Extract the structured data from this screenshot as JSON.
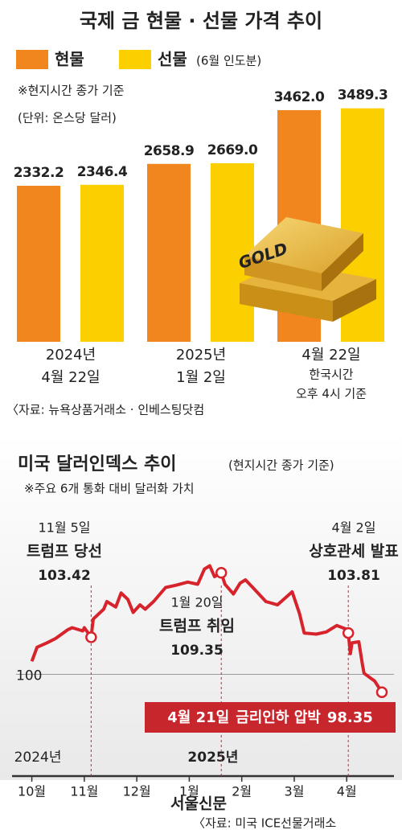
{
  "chart_data": [
    {
      "type": "bar",
      "title": "국제 금 현물 · 선물 가격 추이",
      "notes": [
        "※현지시간 종가 기준",
        "(단위: 온스당 달러)"
      ],
      "categories": [
        [
          "2024년",
          "4월 22일"
        ],
        [
          "2025년",
          "1월 2일"
        ],
        [
          "4월 22일",
          "한국시간",
          "오후 4시 기준"
        ]
      ],
      "series": [
        {
          "name": "현물",
          "color": "#f0861d",
          "values": [
            2332.2,
            2658.9,
            3462.0
          ],
          "value_labels": [
            "2332.2",
            "2658.9",
            "3462.0"
          ]
        },
        {
          "name": "선물",
          "name_note": "(6월 인도분)",
          "color": "#fccf00",
          "values": [
            2346.4,
            2669.0,
            3489.3
          ],
          "value_labels": [
            "2346.4",
            "2669.0",
            "3489.3"
          ]
        }
      ],
      "ylim": [
        0,
        5000
      ],
      "image_text": "GOLD",
      "source": "〈자료: 뉴욕상품거래소 · 인베스팅닷컴"
    },
    {
      "type": "line",
      "title": "미국 달러인덱스 추이",
      "subtitle": "(현지시간 종가 기준)",
      "note": "※주요 6개 통화 대비 달러화 가치",
      "color": "#d7232b",
      "x": [
        10.0,
        10.1,
        10.29,
        10.45,
        10.68,
        10.77,
        10.97,
        11.0,
        11.13,
        11.17,
        11.37,
        11.43,
        11.6,
        11.7,
        11.83,
        11.93,
        12.06,
        12.16,
        12.32,
        12.55,
        12.74,
        12.97,
        13.16,
        13.29,
        13.39,
        13.48,
        13.61,
        13.68,
        13.84,
        13.97,
        14.07,
        14.21,
        14.46,
        14.68,
        14.96,
        15.1,
        15.19,
        15.42,
        15.61,
        15.81,
        15.97,
        16.03,
        16.07,
        16.1,
        16.23,
        16.3,
        16.33,
        16.47,
        16.53,
        16.67
      ],
      "values": [
        101.2,
        102.5,
        102.9,
        103.3,
        104.1,
        104.3,
        104.0,
        104.3,
        103.42,
        105.1,
        106.0,
        106.7,
        106.2,
        107.5,
        106.9,
        105.7,
        106.4,
        106.0,
        106.7,
        108.0,
        108.2,
        108.5,
        108.3,
        109.7,
        110.0,
        109.0,
        109.35,
        108.3,
        107.4,
        108.4,
        108.7,
        108.0,
        106.7,
        106.4,
        107.6,
        105.6,
        103.8,
        103.7,
        103.9,
        104.5,
        104.2,
        103.81,
        101.9,
        102.9,
        103.0,
        100.9,
        100.1,
        99.6,
        99.4,
        98.35
      ],
      "xlim": [
        9.7,
        16.9
      ],
      "xticks": [
        {
          "value": 10,
          "label": "10월"
        },
        {
          "value": 11,
          "label": "11월"
        },
        {
          "value": 12,
          "label": "12월"
        },
        {
          "value": 13,
          "label": "1월"
        },
        {
          "value": 14,
          "label": "2월"
        },
        {
          "value": 15,
          "label": "3월"
        },
        {
          "value": 16,
          "label": "4월"
        }
      ],
      "years": [
        "2024년",
        "2025년"
      ],
      "ylim": [
        91,
        112
      ],
      "yticks": [
        100
      ],
      "annotations": [
        {
          "date": "11월 5일",
          "text": "트럼프 당선",
          "x": 11.13,
          "value": 103.42
        },
        {
          "date": "1월 20일",
          "text": "트럼프 취임",
          "x": 13.61,
          "value": 109.35
        },
        {
          "date": "4월 2일",
          "text": "상호관세 발표",
          "x": 16.03,
          "value": 103.81
        },
        {
          "date": "4월 21일",
          "text": "금리인하 압박",
          "x": 16.67,
          "value": 98.35
        }
      ],
      "watermark": "서울신문",
      "source": "〈자료: 미국 ICE선물거래소"
    }
  ]
}
